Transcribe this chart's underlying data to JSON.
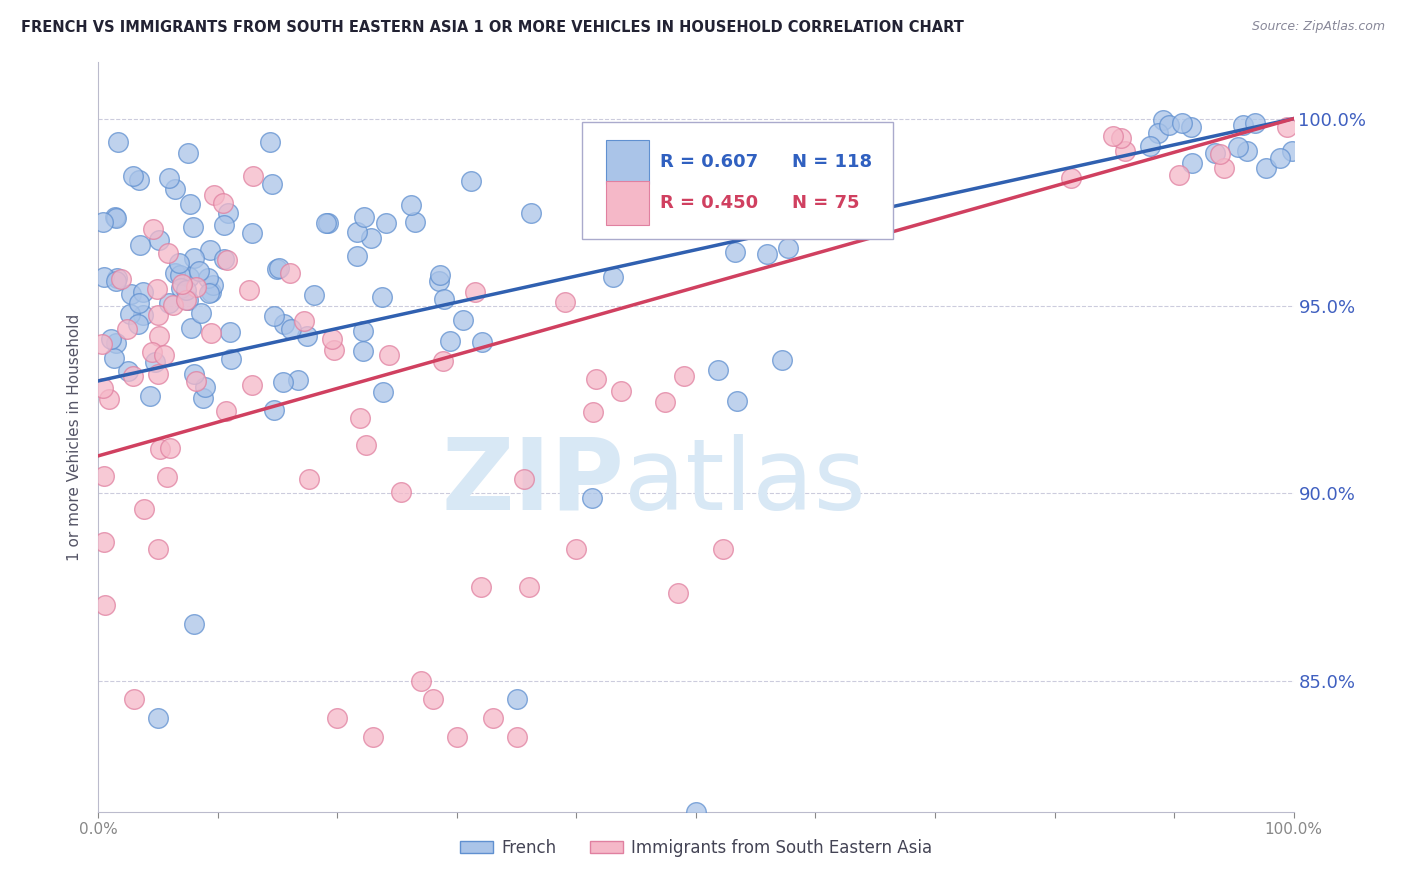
{
  "title": "FRENCH VS IMMIGRANTS FROM SOUTH EASTERN ASIA 1 OR MORE VEHICLES IN HOUSEHOLD CORRELATION CHART",
  "source": "Source: ZipAtlas.com",
  "ylabel": "1 or more Vehicles in Household",
  "legend_french": "French",
  "legend_immigrants": "Immigrants from South Eastern Asia",
  "R_french": 0.607,
  "N_french": 118,
  "R_immigrants": 0.45,
  "N_immigrants": 75,
  "blue_fill": "#aac4e8",
  "pink_fill": "#f5b8c8",
  "blue_edge": "#6090d0",
  "pink_edge": "#e080a0",
  "blue_line_color": "#3060b0",
  "pink_line_color": "#d04060",
  "blue_text_color": "#3060c0",
  "pink_text_color": "#d04060",
  "ytick_color": "#4060c0",
  "watermark_zip": "ZIP",
  "watermark_atlas": "atlas",
  "watermark_color": "#d8e8f5",
  "grid_color": "#ccccdd",
  "background_color": "#ffffff",
  "ylim_min": 81.5,
  "ylim_max": 101.5,
  "xlim_min": 0,
  "xlim_max": 100
}
